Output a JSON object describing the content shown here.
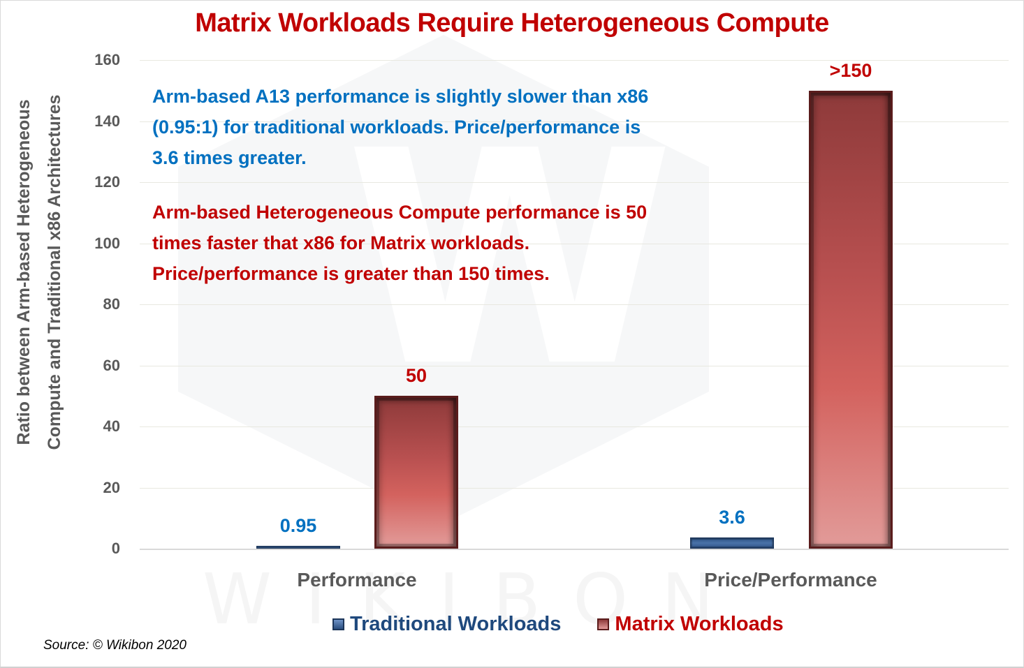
{
  "chart_data": {
    "type": "bar",
    "title": "Matrix Workloads Require Heterogeneous Compute",
    "xlabel": "",
    "ylabel": "Ratio between Arm-based Heterogeneous Compute and Traditional x86 Architectures",
    "ylabel_lines": [
      "Ratio between Arm-based Heterogeneous",
      "Compute and Traditional x86 Architectures"
    ],
    "categories": [
      "Performance",
      "Price/Performance"
    ],
    "series": [
      {
        "name": "Traditional Workloads",
        "values": [
          0.95,
          3.6
        ],
        "labels": [
          "0.95",
          "3.6"
        ],
        "color": "#2f5387"
      },
      {
        "name": "Matrix Workloads",
        "values": [
          50,
          150
        ],
        "labels": [
          "50",
          ">150"
        ],
        "color": "#c0504d"
      }
    ],
    "ylim": [
      0,
      160
    ],
    "yticks": [
      0,
      20,
      40,
      60,
      80,
      100,
      120,
      140,
      160
    ],
    "grid": true,
    "legend_position": "bottom",
    "annotations": [
      {
        "color": "#0070c0",
        "lines": [
          "Arm-based A13 performance is slightly slower than x86",
          "(0.95:1) for traditional workloads. Price/performance is",
          "3.6 times greater."
        ]
      },
      {
        "color": "#c00000",
        "lines": [
          "Arm-based Heterogeneous Compute performance is 50",
          "times faster that x86 for Matrix workloads.",
          "Price/performance is greater than 150 times."
        ]
      }
    ],
    "source": "Source: © Wikibon 2020"
  },
  "watermark": {
    "letter": "W",
    "text": "WIKIBON"
  },
  "colors": {
    "title": "#c00000",
    "traditional_label": "#0070c0",
    "matrix_label": "#c00000",
    "axis_text": "#595959"
  }
}
